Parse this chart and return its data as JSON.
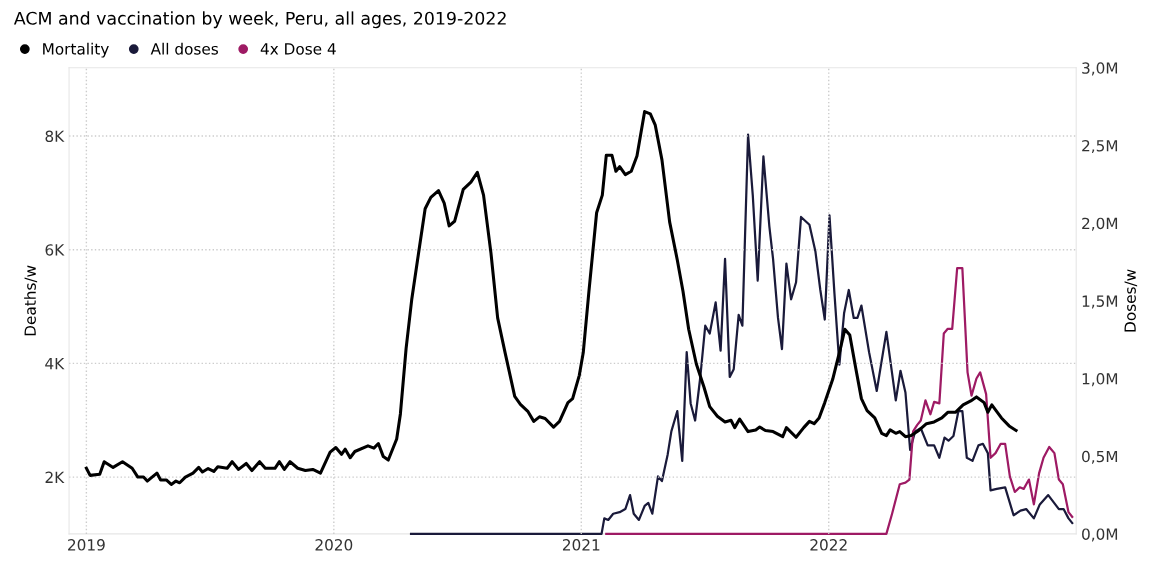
{
  "chart_data": {
    "type": "line",
    "title": "ACM and vaccination by week, Peru, all ages, 2019-2022",
    "ylabel": "Deaths/w",
    "y2label": "Doses/w",
    "xlim": [
      2018.93,
      2023.0
    ],
    "xticks": [
      2019,
      2020,
      2021,
      2022
    ],
    "ylim": [
      1000,
      9200
    ],
    "yticks": [
      {
        "value": 2000,
        "label": "2K"
      },
      {
        "value": 4000,
        "label": "4K"
      },
      {
        "value": 6000,
        "label": "6K"
      },
      {
        "value": 8000,
        "label": "8K"
      }
    ],
    "y2lim": [
      0,
      3000000
    ],
    "y2ticks": [
      {
        "value": 0,
        "label": "0,0M"
      },
      {
        "value": 500000,
        "label": "0,5M"
      },
      {
        "value": 1000000,
        "label": "1,0M"
      },
      {
        "value": 1500000,
        "label": "1,5M"
      },
      {
        "value": 2000000,
        "label": "2,0M"
      },
      {
        "value": 2500000,
        "label": "2,5M"
      },
      {
        "value": 3000000,
        "label": "3,0M"
      }
    ],
    "grid": true,
    "legend": "top left",
    "marker": "none",
    "line_style": "solid",
    "series": [
      {
        "name": "Mortality",
        "color": "#000000",
        "x": [
          2019.0,
          2019.015,
          2019.054,
          2019.072,
          2019.108,
          2019.146,
          2019.185,
          2019.208,
          2019.231,
          2019.246,
          2019.285,
          2019.3,
          2019.323,
          2019.343,
          2019.362,
          2019.377,
          2019.4,
          2019.431,
          2019.454,
          2019.469,
          2019.492,
          2019.515,
          2019.531,
          2019.569,
          2019.589,
          2019.615,
          2019.646,
          2019.669,
          2019.7,
          2019.723,
          2019.762,
          2019.78,
          2019.8,
          2019.823,
          2019.854,
          2019.885,
          2019.915,
          2019.946,
          2019.985,
          2020.008,
          2020.031,
          2020.046,
          2020.066,
          2020.085,
          2020.138,
          2020.162,
          2020.18,
          2020.2,
          2020.22,
          2020.254,
          2020.269,
          2020.292,
          2020.315,
          2020.338,
          2020.369,
          2020.392,
          2020.423,
          2020.446,
          2020.466,
          2020.488,
          2020.523,
          2020.554,
          2020.58,
          2020.605,
          2020.635,
          2020.662,
          2020.692,
          2020.731,
          2020.754,
          2020.785,
          2020.808,
          2020.831,
          2020.854,
          2020.888,
          2020.912,
          2020.946,
          2020.965,
          2020.992,
          2021.008,
          2021.031,
          2021.062,
          2021.085,
          2021.101,
          2021.124,
          2021.14,
          2021.155,
          2021.178,
          2021.202,
          2021.225,
          2021.256,
          2021.279,
          2021.299,
          2021.326,
          2021.357,
          2021.388,
          2021.411,
          2021.434,
          2021.465,
          2021.496,
          2021.519,
          2021.55,
          2021.581,
          2021.605,
          2021.62,
          2021.64,
          2021.674,
          2021.705,
          2021.721,
          2021.744,
          2021.775,
          2021.814,
          2021.829,
          2021.868,
          2021.899,
          2021.922,
          2021.941,
          2021.961,
          2021.984,
          2022.016,
          2022.047,
          2022.065,
          2022.085,
          2022.109,
          2022.132,
          2022.155,
          2022.186,
          2022.214,
          2022.233,
          2022.248,
          2022.271,
          2022.287,
          2022.31,
          2022.333,
          2022.364,
          2022.395,
          2022.426,
          2022.457,
          2022.481,
          2022.512,
          2022.543,
          2022.574,
          2022.597,
          2022.628,
          2022.643,
          2022.659,
          2022.698,
          2022.729,
          2022.757
        ],
        "values": [
          2155,
          2030,
          2050,
          2270,
          2170,
          2270,
          2155,
          2000,
          2000,
          1930,
          2070,
          1950,
          1950,
          1870,
          1930,
          1900,
          2000,
          2070,
          2170,
          2090,
          2150,
          2100,
          2180,
          2155,
          2270,
          2135,
          2240,
          2115,
          2270,
          2155,
          2155,
          2270,
          2135,
          2270,
          2155,
          2115,
          2135,
          2070,
          2440,
          2520,
          2400,
          2490,
          2340,
          2450,
          2550,
          2510,
          2590,
          2360,
          2300,
          2670,
          3110,
          4260,
          5130,
          5810,
          6720,
          6920,
          7040,
          6820,
          6420,
          6500,
          7060,
          7190,
          7360,
          6960,
          5940,
          4800,
          4190,
          3420,
          3280,
          3150,
          2980,
          3060,
          3030,
          2880,
          2980,
          3310,
          3380,
          3790,
          4190,
          5270,
          6650,
          6960,
          7660,
          7660,
          7380,
          7460,
          7320,
          7380,
          7650,
          8430,
          8390,
          8190,
          7580,
          6490,
          5820,
          5270,
          4600,
          3990,
          3580,
          3240,
          3070,
          2970,
          3000,
          2870,
          3020,
          2800,
          2830,
          2880,
          2820,
          2800,
          2710,
          2870,
          2700,
          2870,
          2980,
          2940,
          3040,
          3310,
          3720,
          4260,
          4600,
          4500,
          3920,
          3380,
          3170,
          3040,
          2770,
          2730,
          2830,
          2770,
          2800,
          2710,
          2730,
          2820,
          2940,
          2970,
          3040,
          3140,
          3140,
          3270,
          3340,
          3410,
          3310,
          3140,
          3270,
          3040,
          2900,
          2820
        ]
      },
      {
        "name": "All doses",
        "color": "#1a1a3a",
        "axis": "y2",
        "x": [
          2020.312,
          2021.082,
          2021.093,
          2021.109,
          2021.129,
          2021.155,
          2021.178,
          2021.197,
          2021.212,
          2021.233,
          2021.256,
          2021.271,
          2021.287,
          2021.31,
          2021.326,
          2021.349,
          2021.364,
          2021.388,
          2021.408,
          2021.426,
          2021.442,
          2021.46,
          2021.481,
          2021.501,
          2021.519,
          2021.543,
          2021.563,
          2021.581,
          2021.6,
          2021.616,
          2021.636,
          2021.651,
          2021.674,
          2021.693,
          2021.713,
          2021.736,
          2021.76,
          2021.775,
          2021.795,
          2021.811,
          2021.829,
          2021.848,
          2021.868,
          2021.888,
          2021.922,
          2021.946,
          2021.966,
          2021.984,
          2022.003,
          2022.023,
          2022.043,
          2022.062,
          2022.081,
          2022.101,
          2022.116,
          2022.132,
          2022.163,
          2022.194,
          2022.233,
          2022.271,
          2022.29,
          2022.31,
          2022.329,
          2022.349,
          2022.372,
          2022.4,
          2022.426,
          2022.447,
          2022.468,
          2022.484,
          2022.504,
          2022.524,
          2022.54,
          2022.558,
          2022.581,
          2022.605,
          2022.623,
          2022.643,
          2022.654,
          2022.679,
          2022.713,
          2022.747,
          2022.775,
          2022.798,
          2022.829,
          2022.853,
          2022.887,
          2022.93,
          2022.949,
          2022.969,
          2022.984
        ],
        "values": [
          0,
          0,
          100000,
          90000,
          130000,
          140000,
          160000,
          250000,
          130000,
          90000,
          180000,
          200000,
          130000,
          370000,
          340000,
          510000,
          660000,
          790000,
          470000,
          1170000,
          840000,
          730000,
          1010000,
          1340000,
          1290000,
          1490000,
          1180000,
          1770000,
          1010000,
          1060000,
          1410000,
          1340000,
          2570000,
          2180000,
          1630000,
          2430000,
          1980000,
          1770000,
          1390000,
          1190000,
          1740000,
          1510000,
          1620000,
          2040000,
          1990000,
          1820000,
          1570000,
          1380000,
          2050000,
          1550000,
          1090000,
          1420000,
          1570000,
          1390000,
          1390000,
          1470000,
          1170000,
          920000,
          1300000,
          860000,
          1050000,
          910000,
          540000,
          660000,
          680000,
          570000,
          570000,
          490000,
          620000,
          600000,
          630000,
          790000,
          790000,
          490000,
          470000,
          570000,
          580000,
          520000,
          280000,
          290000,
          300000,
          120000,
          150000,
          160000,
          100000,
          190000,
          250000,
          160000,
          160000,
          100000,
          70000
        ]
      },
      {
        "name": "4x Dose 4",
        "color": "#9e1a64",
        "axis": "y2",
        "x": [
          2021.101,
          2022.233,
          2022.256,
          2022.287,
          2022.31,
          2022.326,
          2022.341,
          2022.357,
          2022.372,
          2022.391,
          2022.411,
          2022.426,
          2022.447,
          2022.465,
          2022.481,
          2022.499,
          2022.519,
          2022.54,
          2022.561,
          2022.577,
          2022.597,
          2022.612,
          2022.636,
          2022.654,
          2022.674,
          2022.695,
          2022.713,
          2022.732,
          2022.752,
          2022.772,
          2022.788,
          2022.809,
          2022.829,
          2022.85,
          2022.868,
          2022.891,
          2022.912,
          2022.93,
          2022.946,
          2022.969,
          2022.984
        ],
        "values": [
          0,
          0,
          130000,
          320000,
          330000,
          350000,
          660000,
          700000,
          730000,
          860000,
          770000,
          850000,
          840000,
          1290000,
          1320000,
          1320000,
          1710000,
          1710000,
          1040000,
          890000,
          1000000,
          1040000,
          900000,
          490000,
          520000,
          580000,
          580000,
          370000,
          270000,
          300000,
          290000,
          350000,
          190000,
          390000,
          490000,
          560000,
          520000,
          350000,
          320000,
          140000,
          110000
        ]
      }
    ]
  }
}
